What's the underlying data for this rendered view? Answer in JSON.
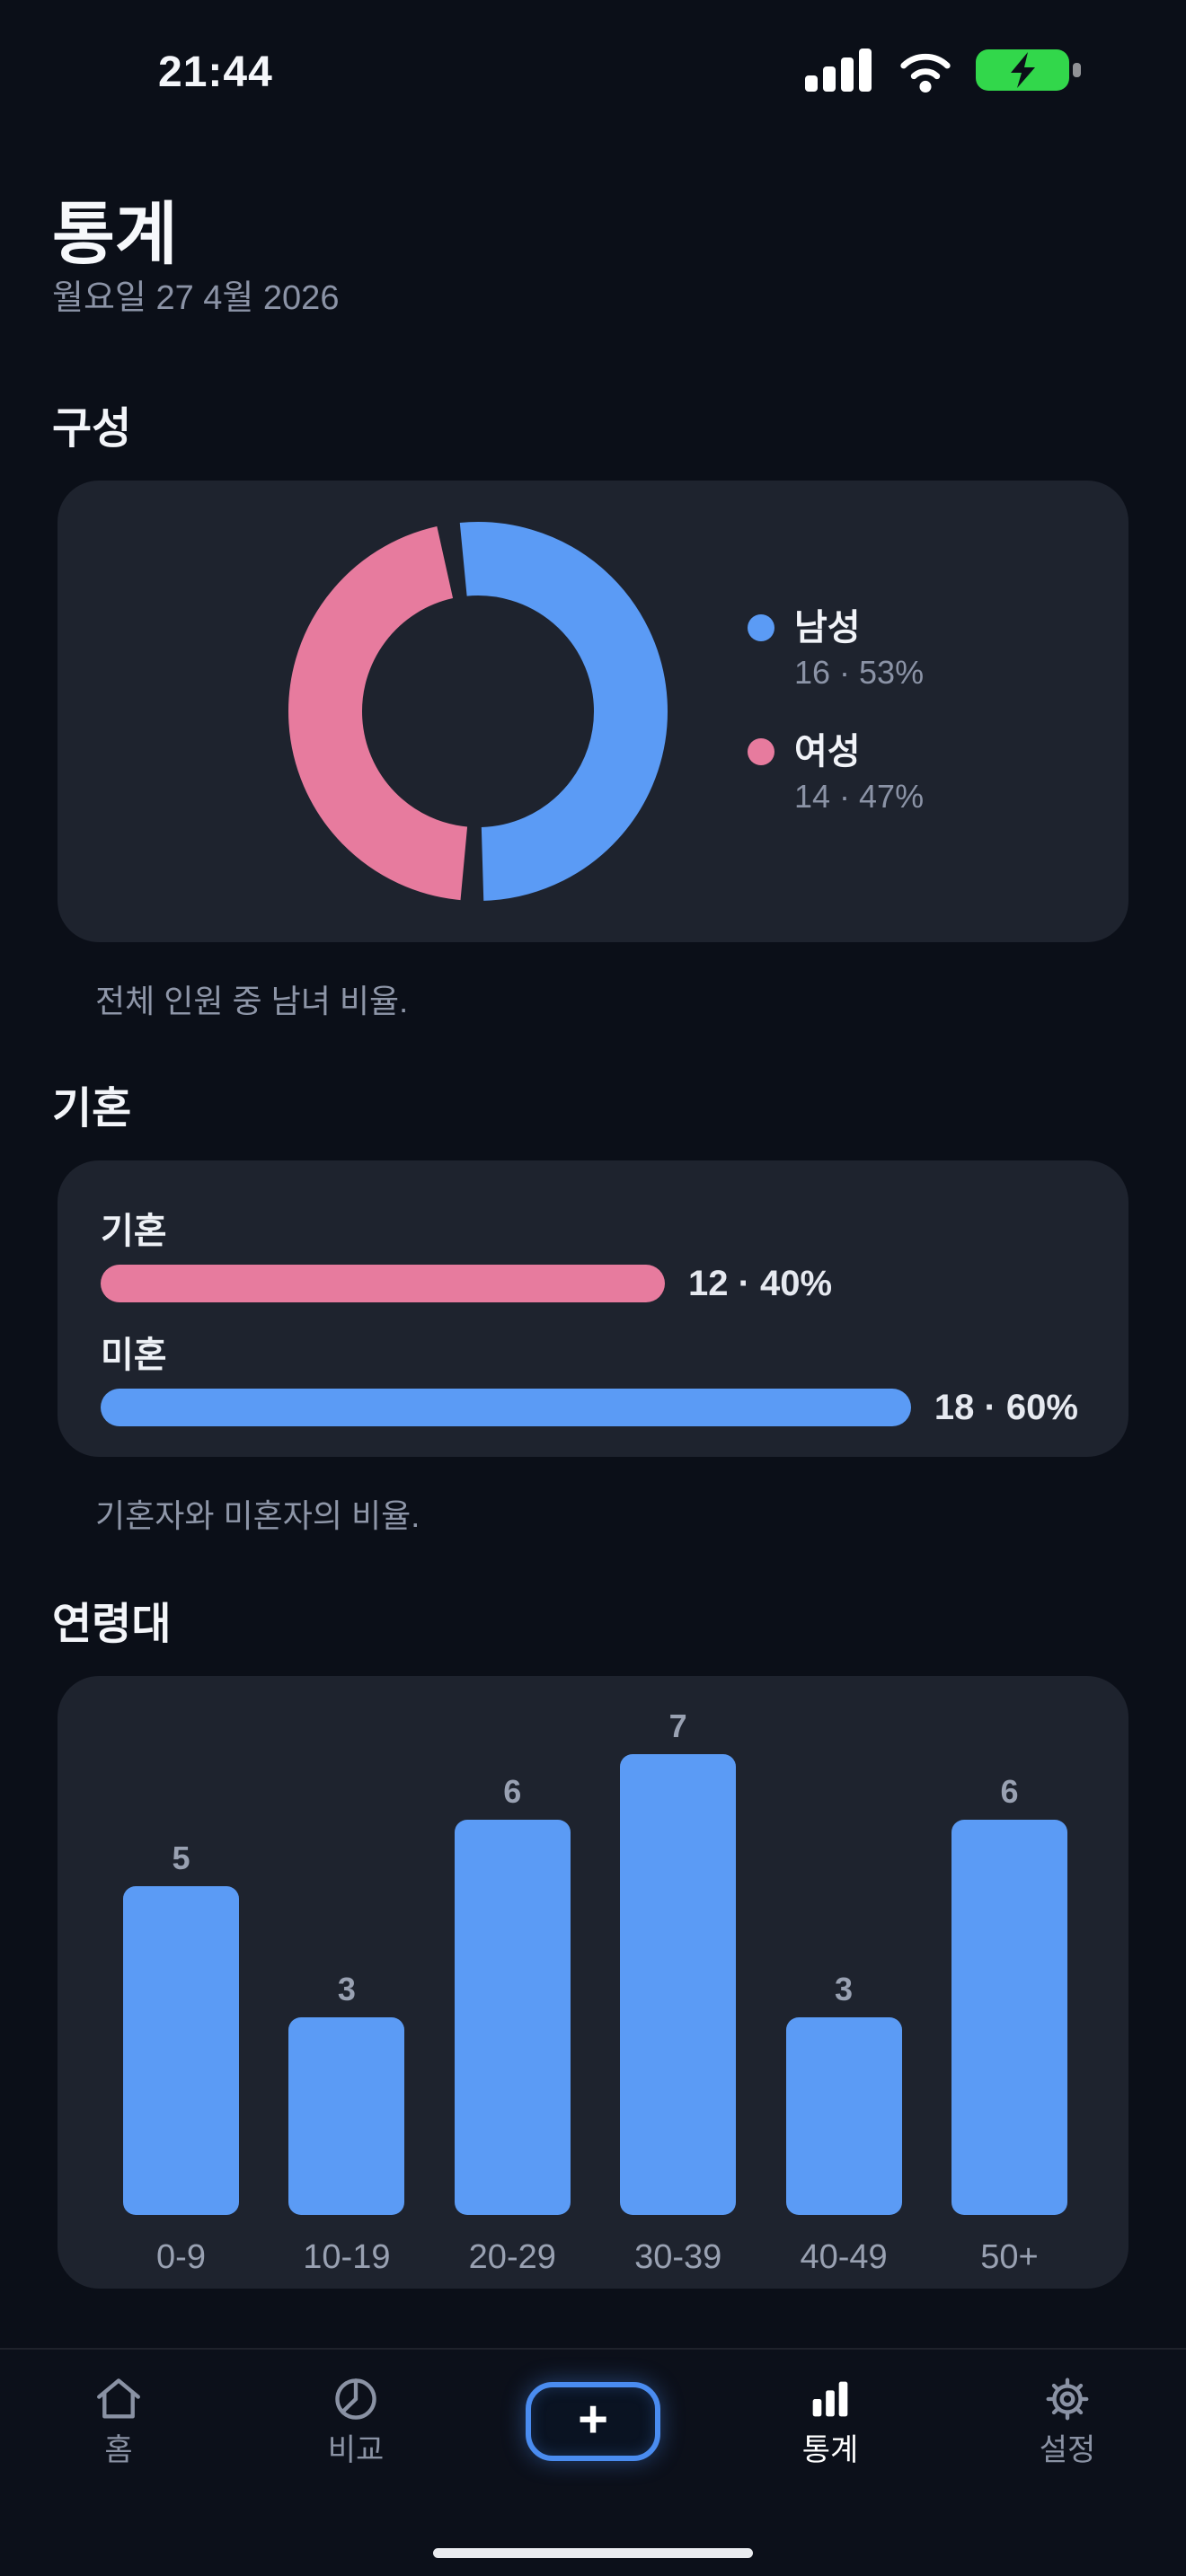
{
  "status_bar": {
    "time": "21:44"
  },
  "header": {
    "title": "통계",
    "date": "월요일 27 4월 2026"
  },
  "sections": {
    "composition": {
      "title": "구성",
      "caption": "전체 인원 중 남녀 비율.",
      "legend": [
        {
          "label": "남성",
          "value": "16 · 53%",
          "color": "#5b9bf5"
        },
        {
          "label": "여성",
          "value": "14 · 47%",
          "color": "#e77b9e"
        }
      ]
    },
    "marital": {
      "title": "기혼",
      "caption": "기혼자와 미혼자의 비율.",
      "bars": [
        {
          "label": "기혼",
          "value": "12 · 40%",
          "percent": 40,
          "color": "#e77b9e"
        },
        {
          "label": "미혼",
          "value": "18 · 60%",
          "percent": 60,
          "color": "#5b9bf5"
        }
      ]
    },
    "age": {
      "title": "연령대"
    }
  },
  "chart_data": [
    {
      "type": "pie",
      "title": "구성",
      "labels": [
        "남성",
        "여성"
      ],
      "values": [
        16,
        14
      ],
      "percents": [
        53,
        47
      ],
      "colors": [
        "#5b9bf5",
        "#e77b9e"
      ],
      "legend_position": "right",
      "donut": true
    },
    {
      "type": "bar",
      "title": "기혼",
      "orientation": "horizontal",
      "categories": [
        "기혼",
        "미혼"
      ],
      "values": [
        12,
        18
      ],
      "percents": [
        40,
        60
      ],
      "colors": [
        "#e77b9e",
        "#5b9bf5"
      ]
    },
    {
      "type": "bar",
      "title": "연령대",
      "categories": [
        "0-9",
        "10-19",
        "20-29",
        "30-39",
        "40-49",
        "50+"
      ],
      "values": [
        5,
        3,
        6,
        7,
        3,
        6
      ],
      "ylim": [
        0,
        7
      ],
      "bar_color": "#5b9bf5",
      "grid": false
    }
  ],
  "tab_bar": {
    "plus_glyph": "+",
    "items": [
      {
        "label": "홈",
        "icon": "home-icon",
        "active": false
      },
      {
        "label": "비교",
        "icon": "pie-chart-icon",
        "active": false
      },
      {
        "label": "통계",
        "icon": "bar-chart-icon",
        "active": true
      },
      {
        "label": "설정",
        "icon": "gear-icon",
        "active": false
      }
    ]
  },
  "colors": {
    "background": "#0b0f18",
    "card": "#1e232e",
    "blue": "#5b9bf5",
    "pink": "#e77b9e",
    "battery_charging": "#32d74b",
    "muted_text": "#8b93a6"
  }
}
